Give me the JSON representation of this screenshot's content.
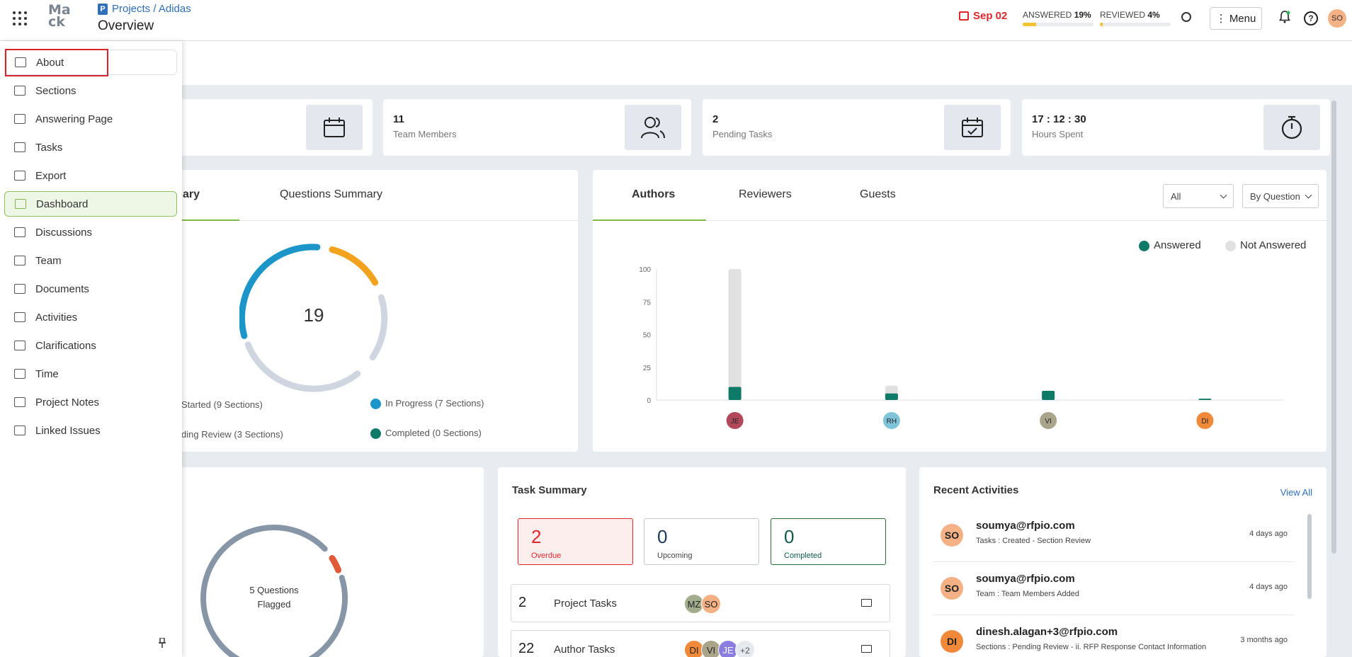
{
  "header": {
    "breadcrumb": "Projects / Adidas",
    "title": "Overview",
    "due_date": "Sep 02",
    "answered_label": "ANSWERED",
    "answered_pct": "19%",
    "answered_fraction": 0.19,
    "reviewed_label": "REVIEWED",
    "reviewed_pct": "4%",
    "reviewed_fraction": 0.04,
    "menu_label": "Menu",
    "user_initials": "SO",
    "colors": {
      "due": "#e0262b",
      "progress": "#f0c330"
    }
  },
  "sidebar": {
    "items": [
      {
        "label": "About"
      },
      {
        "label": "Sections"
      },
      {
        "label": "Answering Page"
      },
      {
        "label": "Tasks"
      },
      {
        "label": "Export"
      },
      {
        "label": "Dashboard"
      },
      {
        "label": "Discussions"
      },
      {
        "label": "Team"
      },
      {
        "label": "Documents"
      },
      {
        "label": "Activities"
      },
      {
        "label": "Clarifications"
      },
      {
        "label": "Time"
      },
      {
        "label": "Project Notes"
      },
      {
        "label": "Linked Issues"
      }
    ],
    "active": "Dashboard",
    "focused": "About"
  },
  "stats": {
    "team": {
      "value": "11",
      "label": "Team Members"
    },
    "pending": {
      "value": "2",
      "label": "Pending Tasks"
    },
    "hours": {
      "value": "17 : 12 : 30",
      "label": "Hours Spent"
    }
  },
  "summary": {
    "tab_partial": "ary",
    "tab_questions": "Questions Summary",
    "center_value": "19",
    "legend": [
      {
        "label": "Started (9 Sections)",
        "color": "#cfd6e0"
      },
      {
        "label": "In Progress (7 Sections)",
        "color": "#1c96c9"
      },
      {
        "label": "ding Review (3 Sections)",
        "color": "#f3a21d"
      },
      {
        "label": "Completed (0 Sections)",
        "color": "#0f7a68"
      }
    ]
  },
  "authors": {
    "tabs": [
      "Authors",
      "Reviewers",
      "Guests"
    ],
    "filter1": "All",
    "filter2": "By Question",
    "legend_answered": "Answered",
    "legend_not_answered": "Not Answered"
  },
  "chart_data": {
    "type": "bar",
    "categories": [
      "JE",
      "RH",
      "VI",
      "DI"
    ],
    "series": [
      {
        "name": "Answered",
        "values": [
          10,
          5,
          7,
          1
        ],
        "color": "#0f7a68"
      },
      {
        "name": "Not Answered",
        "values": [
          90,
          6,
          0,
          0
        ],
        "color": "#e1e1e1"
      }
    ],
    "ylim": [
      0,
      100
    ],
    "yticks": [
      "0",
      "25",
      "50",
      "75",
      "100"
    ],
    "avatar_colors": [
      "#b0485a",
      "#7fc4d8",
      "#a9a48a",
      "#f08a3a"
    ],
    "legend": "top-right"
  },
  "flagged": {
    "text1": "5 Questions",
    "text2": "Flagged"
  },
  "tasks": {
    "title": "Task Summary",
    "overdue": {
      "value": "2",
      "label": "Overdue"
    },
    "upcoming": {
      "value": "0",
      "label": "Upcoming"
    },
    "completed": {
      "value": "0",
      "label": "Completed"
    },
    "rows": [
      {
        "count": "2",
        "label": "Project Tasks",
        "avatars": [
          "MZ",
          "SO"
        ]
      },
      {
        "count": "22",
        "label": "Author Tasks",
        "avatars": [
          "DI",
          "VI",
          "JE"
        ],
        "more": "+2"
      }
    ]
  },
  "activities": {
    "title": "Recent Activities",
    "view_all": "View All",
    "items": [
      {
        "initials": "SO",
        "who": "soumya@rfpio.com",
        "what": "Tasks : Created - Section Review",
        "when": "4 days ago"
      },
      {
        "initials": "SO",
        "who": "soumya@rfpio.com",
        "what": "Team : Team Members Added",
        "when": "4 days ago"
      },
      {
        "initials": "DI",
        "who": "dinesh.alagan+3@rfpio.com",
        "what": "Sections : Pending Review - ii. RFP Response Contact Information",
        "when": "3 months ago"
      }
    ]
  }
}
